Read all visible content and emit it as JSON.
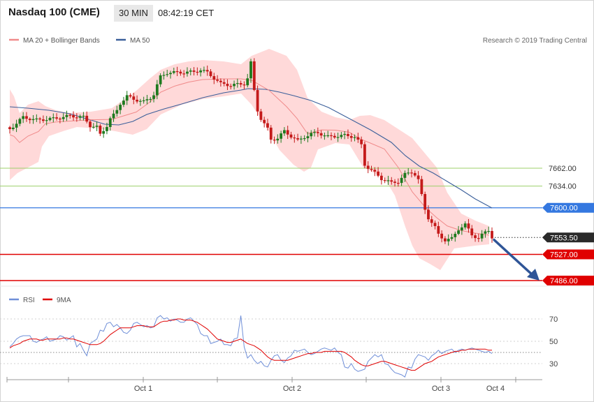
{
  "header": {
    "instrument": "Nasdaq 100 (CME)",
    "interval": "30 MIN",
    "time": "08:42:19 CET"
  },
  "legend": {
    "bollinger_label": "MA 20 + Bollinger Bands",
    "ma50_label": "MA 50",
    "copyright": "Research © 2019 Trading Central",
    "rsi_label": "RSI",
    "rsi_ma_label": "9MA"
  },
  "colors": {
    "bull": "#1e7a1e",
    "bear": "#c41a1a",
    "band_fill": "#ffd9d9",
    "ma20": "#f08a8a",
    "ma50": "#3a5f9a",
    "support": "#e00000",
    "resistance": "#9ccf6a",
    "pivot": "#3478e0",
    "last": "#2a2a2a",
    "arrow": "#2f5597",
    "rsi": "#6f8fd8",
    "rsi_ma": "#e00000"
  },
  "chart_data": [
    {
      "type": "candlestick",
      "price_range": [
        7486,
        7662
      ],
      "x_labels": [
        "Oct 1",
        "Oct 2",
        "Oct 3",
        "Oct 4"
      ],
      "levels": [
        {
          "name": "resistance-2",
          "value": 7662,
          "label": "7662.00",
          "kind": "resistance"
        },
        {
          "name": "resistance-1",
          "value": 7634,
          "label": "7634.00",
          "kind": "resistance"
        },
        {
          "name": "pivot",
          "value": 7600,
          "label": "7600.00",
          "kind": "pivot"
        },
        {
          "name": "last-price",
          "value": 7553.5,
          "label": "7553.50",
          "kind": "last"
        },
        {
          "name": "support-1",
          "value": 7527,
          "label": "7527.00",
          "kind": "support"
        },
        {
          "name": "support-2",
          "value": 7486,
          "label": "7486.00",
          "kind": "support"
        }
      ],
      "forecast_arrow": {
        "from": 7552,
        "to": 7486
      }
    },
    {
      "type": "line",
      "indicator": "RSI",
      "y_ticks": [
        30,
        50,
        70
      ],
      "rsi": [
        45,
        48,
        52,
        54,
        55,
        55,
        55,
        50,
        49,
        51,
        52,
        54,
        50,
        51,
        52,
        55,
        54,
        51,
        53,
        55,
        45,
        48,
        42,
        37,
        48,
        50,
        52,
        60,
        59,
        66,
        67,
        63,
        65,
        62,
        58,
        57,
        60,
        66,
        67,
        65,
        63,
        64,
        62,
        63,
        71,
        73,
        70,
        71,
        68,
        70,
        69,
        67,
        67,
        70,
        71,
        68,
        65,
        57,
        55,
        55,
        48,
        49,
        50,
        52,
        47,
        47,
        46,
        52,
        53,
        73,
        45,
        35,
        38,
        33,
        30,
        32,
        28,
        27,
        33,
        37,
        38,
        33,
        31,
        35,
        37,
        42,
        41,
        42,
        43,
        40,
        38,
        39,
        41,
        43,
        44,
        43,
        42,
        44,
        40,
        38,
        27,
        26,
        30,
        25,
        23,
        24,
        25,
        32,
        35,
        38,
        36,
        38,
        30,
        29,
        25,
        22,
        21,
        20,
        18,
        27,
        26,
        34,
        38,
        37,
        36,
        33,
        37,
        39,
        42,
        39,
        41,
        42,
        43,
        40,
        42,
        43,
        42,
        43,
        44,
        43,
        42,
        41,
        40,
        41,
        39
      ],
      "rsi_ma": [
        44,
        46,
        47,
        48,
        50,
        51,
        52,
        52,
        52,
        51,
        51,
        52,
        52,
        52,
        52,
        52,
        53,
        53,
        52,
        52,
        51,
        50,
        49,
        48,
        47,
        47,
        47,
        48,
        50,
        53,
        56,
        58,
        60,
        62,
        62,
        62,
        62,
        63,
        64,
        64,
        64,
        63,
        63,
        63,
        65,
        67,
        68,
        68,
        69,
        69,
        70,
        70,
        69,
        69,
        69,
        68,
        67,
        65,
        63,
        61,
        58,
        55,
        52,
        51,
        50,
        49,
        49,
        50,
        51,
        52,
        50,
        48,
        47,
        46,
        44,
        42,
        39,
        36,
        34,
        33,
        33,
        33,
        33,
        33,
        34,
        35,
        36,
        37,
        38,
        39,
        39,
        40,
        40,
        40,
        41,
        41,
        41,
        41,
        41,
        41,
        40,
        38,
        36,
        33,
        31,
        29,
        28,
        28,
        29,
        30,
        31,
        32,
        32,
        31,
        30,
        29,
        28,
        27,
        26,
        25,
        24,
        24,
        26,
        28,
        30,
        31,
        32,
        34,
        36,
        37,
        38,
        39,
        40,
        41,
        41,
        42,
        42,
        43,
        43,
        43,
        43,
        43,
        43,
        42,
        42
      ]
    }
  ]
}
